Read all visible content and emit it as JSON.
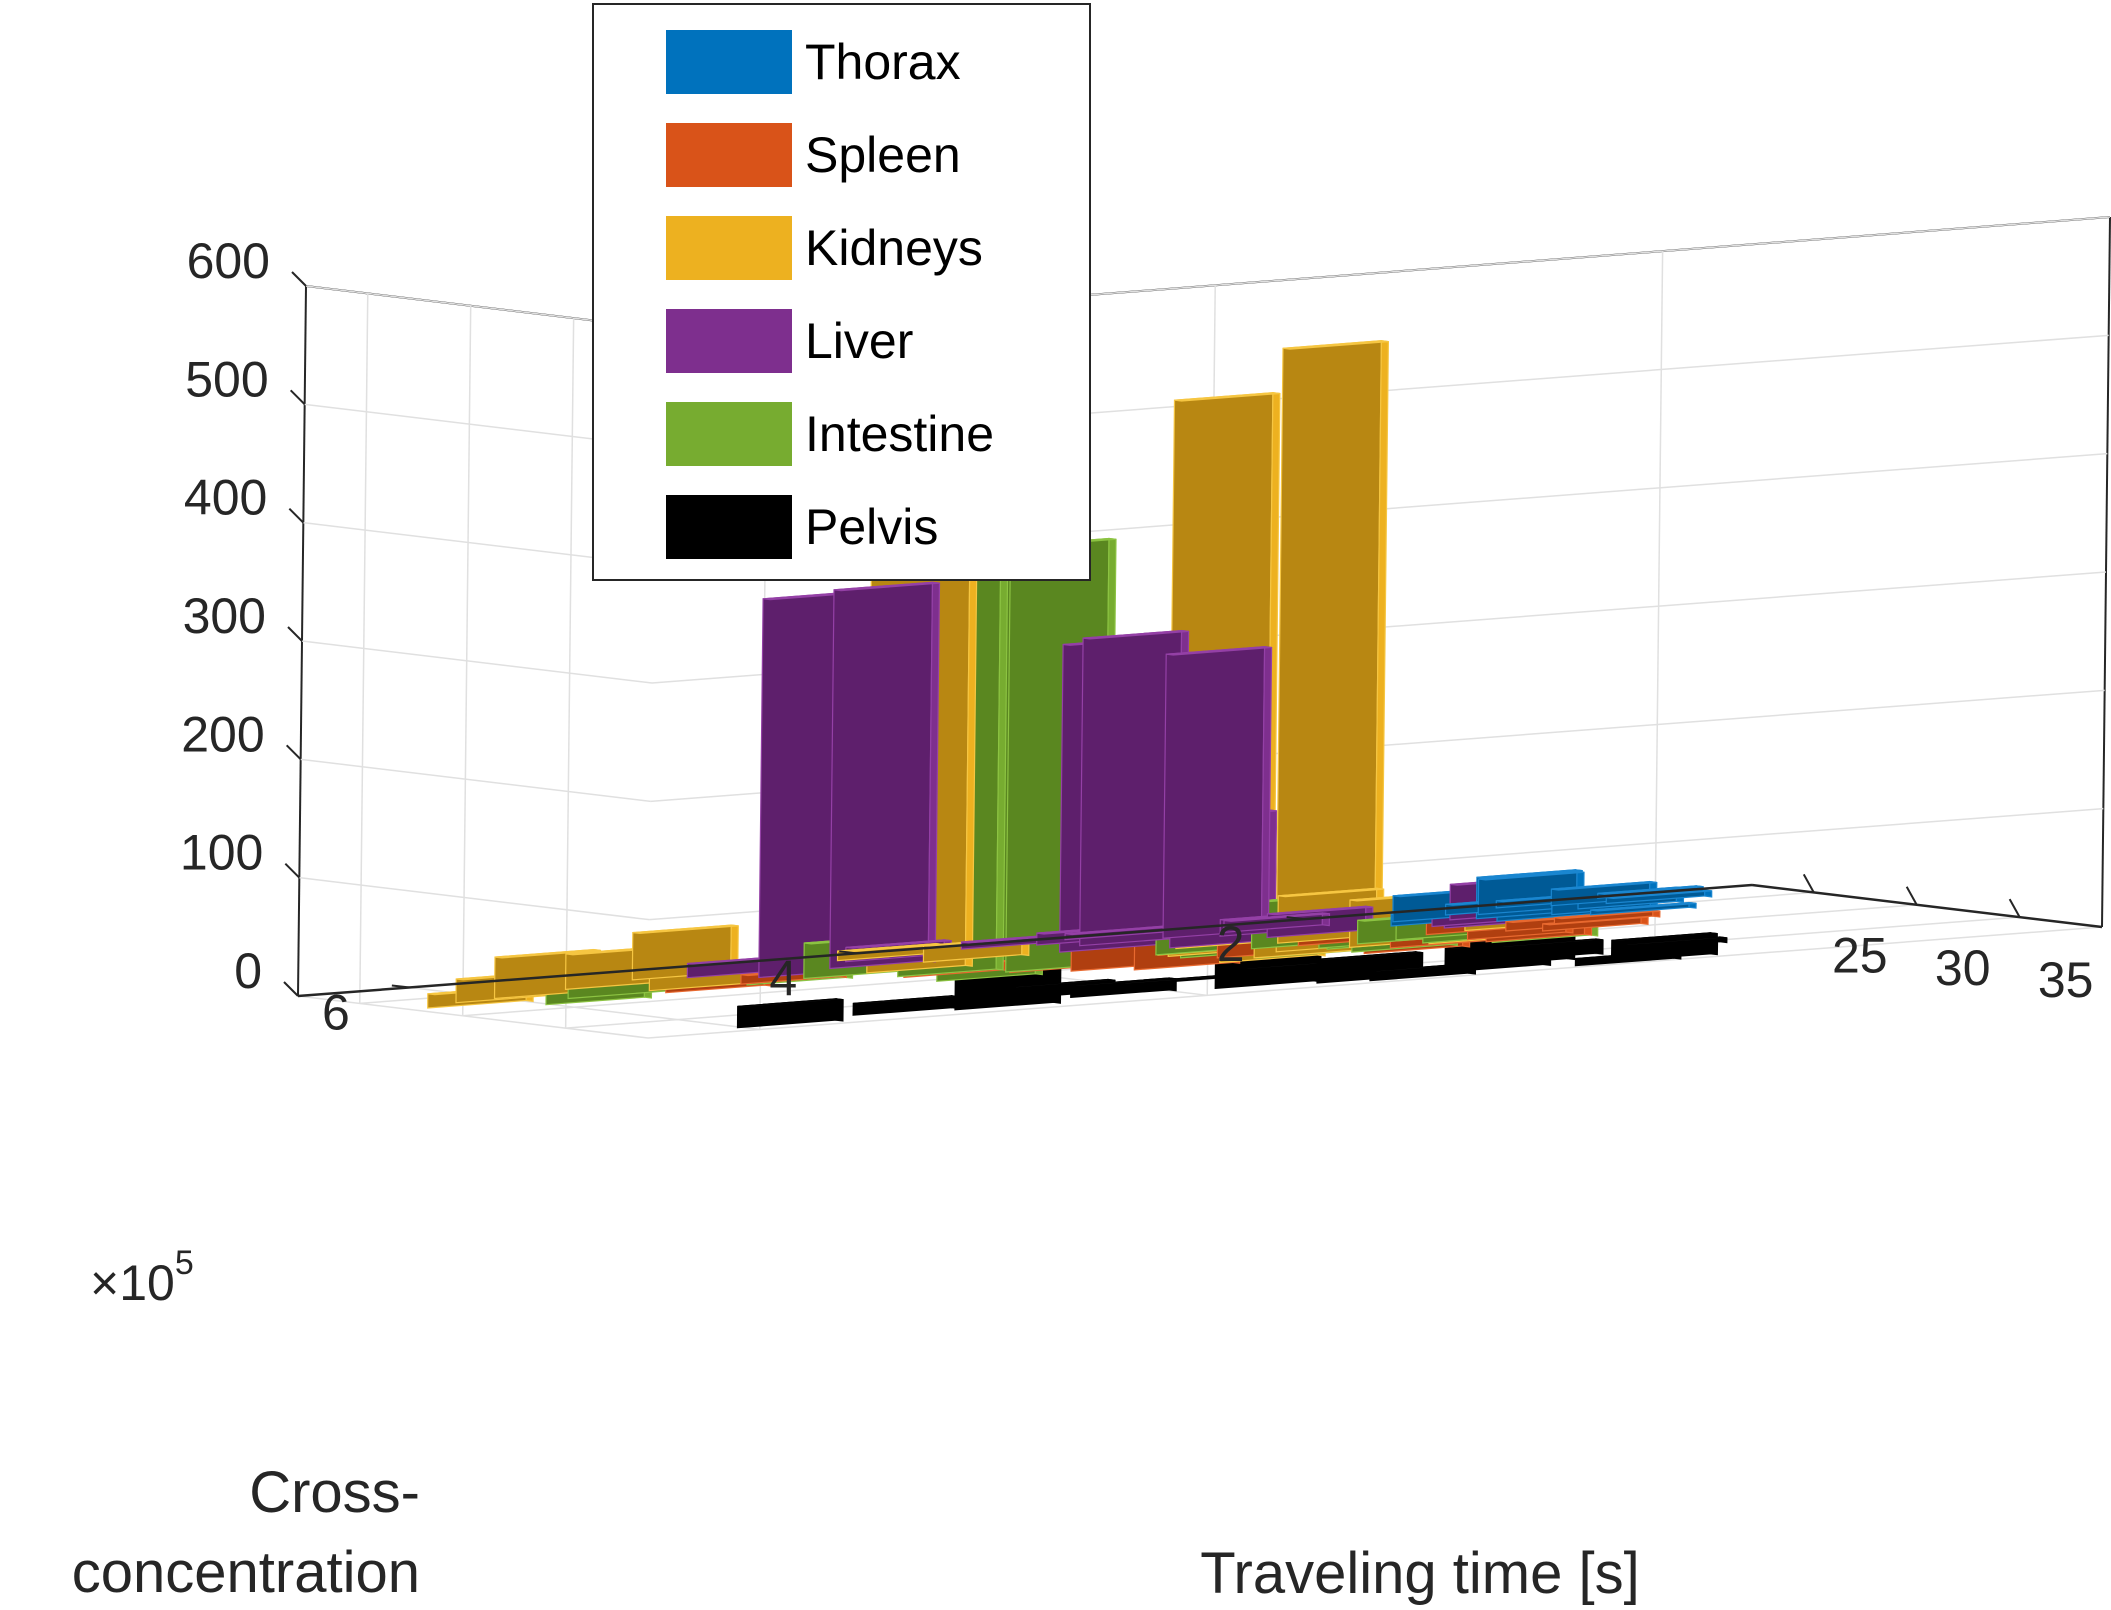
{
  "chart_data": {
    "type": "bar3d",
    "title": "",
    "xlabel": "Traveling time [s]",
    "ylabel": "Cross-concentration",
    "zlabel": "",
    "y_multiplier": "×10",
    "y_multiplier_exp": "5",
    "xlim": [
      22,
      39
    ],
    "ylim": [
      0,
      6.5
    ],
    "zlim": [
      0,
      600
    ],
    "x_ticks": [
      25,
      30,
      35
    ],
    "y_ticks": [
      2,
      4,
      6
    ],
    "z_ticks": [
      0,
      100,
      200,
      300,
      400,
      500,
      600
    ],
    "grid": true,
    "legend_position": "top-left",
    "series": [
      {
        "name": "Thorax",
        "color": "#0072BD",
        "side": "#005A96",
        "top": "#1A86D0",
        "bars": [
          [
            22.5,
            0.5,
            4
          ],
          [
            23.0,
            1.0,
            6
          ],
          [
            23.5,
            0.8,
            14
          ],
          [
            23.8,
            1.3,
            9
          ],
          [
            24.0,
            0.6,
            5
          ],
          [
            24.3,
            1.2,
            30
          ],
          [
            24.5,
            1.6,
            22
          ],
          [
            24.8,
            0.8,
            12
          ],
          [
            25.3,
            1.3,
            35
          ],
          [
            25.5,
            1.7,
            10
          ],
          [
            25.7,
            1.0,
            16
          ],
          [
            26.3,
            1.3,
            6
          ],
          [
            26.5,
            0.9,
            4
          ]
        ]
      },
      {
        "name": "Spleen",
        "color": "#D95319",
        "side": "#B03F10",
        "top": "#E8692F",
        "bars": [
          [
            28.0,
            1.2,
            5
          ],
          [
            28.3,
            1.8,
            10
          ],
          [
            28.6,
            2.4,
            14
          ],
          [
            28.9,
            1.5,
            8
          ],
          [
            29.3,
            2.2,
            12
          ],
          [
            29.6,
            1.4,
            6
          ],
          [
            29.8,
            3.8,
            250
          ],
          [
            30.1,
            2.9,
            16
          ],
          [
            30.3,
            1.8,
            10
          ],
          [
            30.6,
            3.6,
            200
          ],
          [
            30.9,
            2.2,
            14
          ],
          [
            31.2,
            1.8,
            10
          ],
          [
            31.5,
            3.4,
            230
          ],
          [
            31.8,
            2.4,
            12
          ],
          [
            27.6,
            4.8,
            8
          ],
          [
            28.3,
            5.2,
            10
          ],
          [
            29.0,
            4.2,
            8
          ]
        ]
      },
      {
        "name": "Kidneys",
        "color": "#EDB120",
        "side": "#B88712",
        "top": "#F6C642",
        "bars": [
          [
            23.6,
            4.0,
            8
          ],
          [
            24.5,
            5.0,
            40
          ],
          [
            25.6,
            5.4,
            30
          ],
          [
            25.6,
            3.8,
            14
          ],
          [
            26.5,
            5.8,
            35
          ],
          [
            27.2,
            4.2,
            430
          ],
          [
            27.5,
            5.2,
            15
          ],
          [
            27.0,
            2.8,
            20
          ],
          [
            27.6,
            2.4,
            40
          ],
          [
            28.3,
            3.0,
            20
          ],
          [
            28.0,
            1.6,
            15
          ],
          [
            28.8,
            3.0,
            470
          ],
          [
            29.7,
            2.6,
            510
          ],
          [
            30.0,
            2.3,
            40
          ],
          [
            30.6,
            2.0,
            16
          ],
          [
            30.8,
            2.8,
            30
          ],
          [
            31.3,
            3.0,
            18
          ],
          [
            26.8,
            6.0,
            20
          ],
          [
            27.6,
            6.2,
            12
          ]
        ]
      },
      {
        "name": "Liver",
        "color": "#7E2F8E",
        "side": "#5E1F6C",
        "top": "#9440A6",
        "bars": [
          [
            22.7,
            2.9,
            5
          ],
          [
            23.1,
            3.4,
            6
          ],
          [
            23.5,
            3.1,
            10
          ],
          [
            23.9,
            2.3,
            10
          ],
          [
            24.0,
            4.0,
            12
          ],
          [
            24.2,
            2.6,
            240
          ],
          [
            24.5,
            3.0,
            260
          ],
          [
            24.8,
            2.4,
            14
          ],
          [
            25.1,
            1.4,
            30
          ],
          [
            25.4,
            4.2,
            320
          ],
          [
            25.7,
            3.2,
            260
          ],
          [
            26.0,
            2.3,
            20
          ],
          [
            26.3,
            4.6,
            320
          ],
          [
            26.7,
            2.8,
            110
          ],
          [
            27.0,
            1.6,
            20
          ],
          [
            26.4,
            1.6,
            12
          ],
          [
            25.0,
            4.8,
            12
          ]
        ]
      },
      {
        "name": "Intestine",
        "color": "#77AC30",
        "side": "#5A8720",
        "top": "#8CC342",
        "bars": [
          [
            27.4,
            4.5,
            30
          ],
          [
            27.9,
            4.8,
            20
          ],
          [
            28.2,
            3.0,
            30
          ],
          [
            28.5,
            2.6,
            40
          ],
          [
            28.7,
            4.2,
            470
          ],
          [
            29.0,
            2.0,
            14
          ],
          [
            29.3,
            2.2,
            20
          ],
          [
            29.6,
            3.8,
            360
          ],
          [
            30.0,
            2.4,
            12
          ],
          [
            30.3,
            2.0,
            12
          ],
          [
            30.6,
            4.2,
            380
          ],
          [
            30.9,
            2.8,
            15
          ],
          [
            31.2,
            2.4,
            10
          ],
          [
            31.5,
            1.8,
            10
          ],
          [
            29.0,
            5.8,
            15
          ],
          [
            27.9,
            5.6,
            10
          ],
          [
            29.4,
            3.0,
            30
          ],
          [
            29.6,
            2.4,
            15
          ]
        ]
      },
      {
        "name": "Pelvis",
        "color": "#000000",
        "side": "#000000",
        "top": "#1A1A1A",
        "bars": [
          [
            35.1,
            3.8,
            2
          ],
          [
            35.6,
            1.6,
            4
          ],
          [
            36.1,
            2.2,
            12
          ],
          [
            36.3,
            4.4,
            10
          ],
          [
            36.7,
            3.4,
            12
          ],
          [
            36.9,
            2.4,
            20
          ],
          [
            37.1,
            4.2,
            10
          ],
          [
            37.3,
            1.8,
            14
          ],
          [
            37.6,
            3.6,
            30
          ],
          [
            37.9,
            2.6,
            20
          ],
          [
            38.0,
            4.8,
            40
          ],
          [
            38.2,
            3.2,
            20
          ],
          [
            38.4,
            1.9,
            10
          ],
          [
            38.6,
            3.0,
            8
          ],
          [
            38.8,
            2.1,
            6
          ],
          [
            37.4,
            5.2,
            10
          ],
          [
            38.3,
            5.8,
            18
          ]
        ]
      }
    ]
  }
}
